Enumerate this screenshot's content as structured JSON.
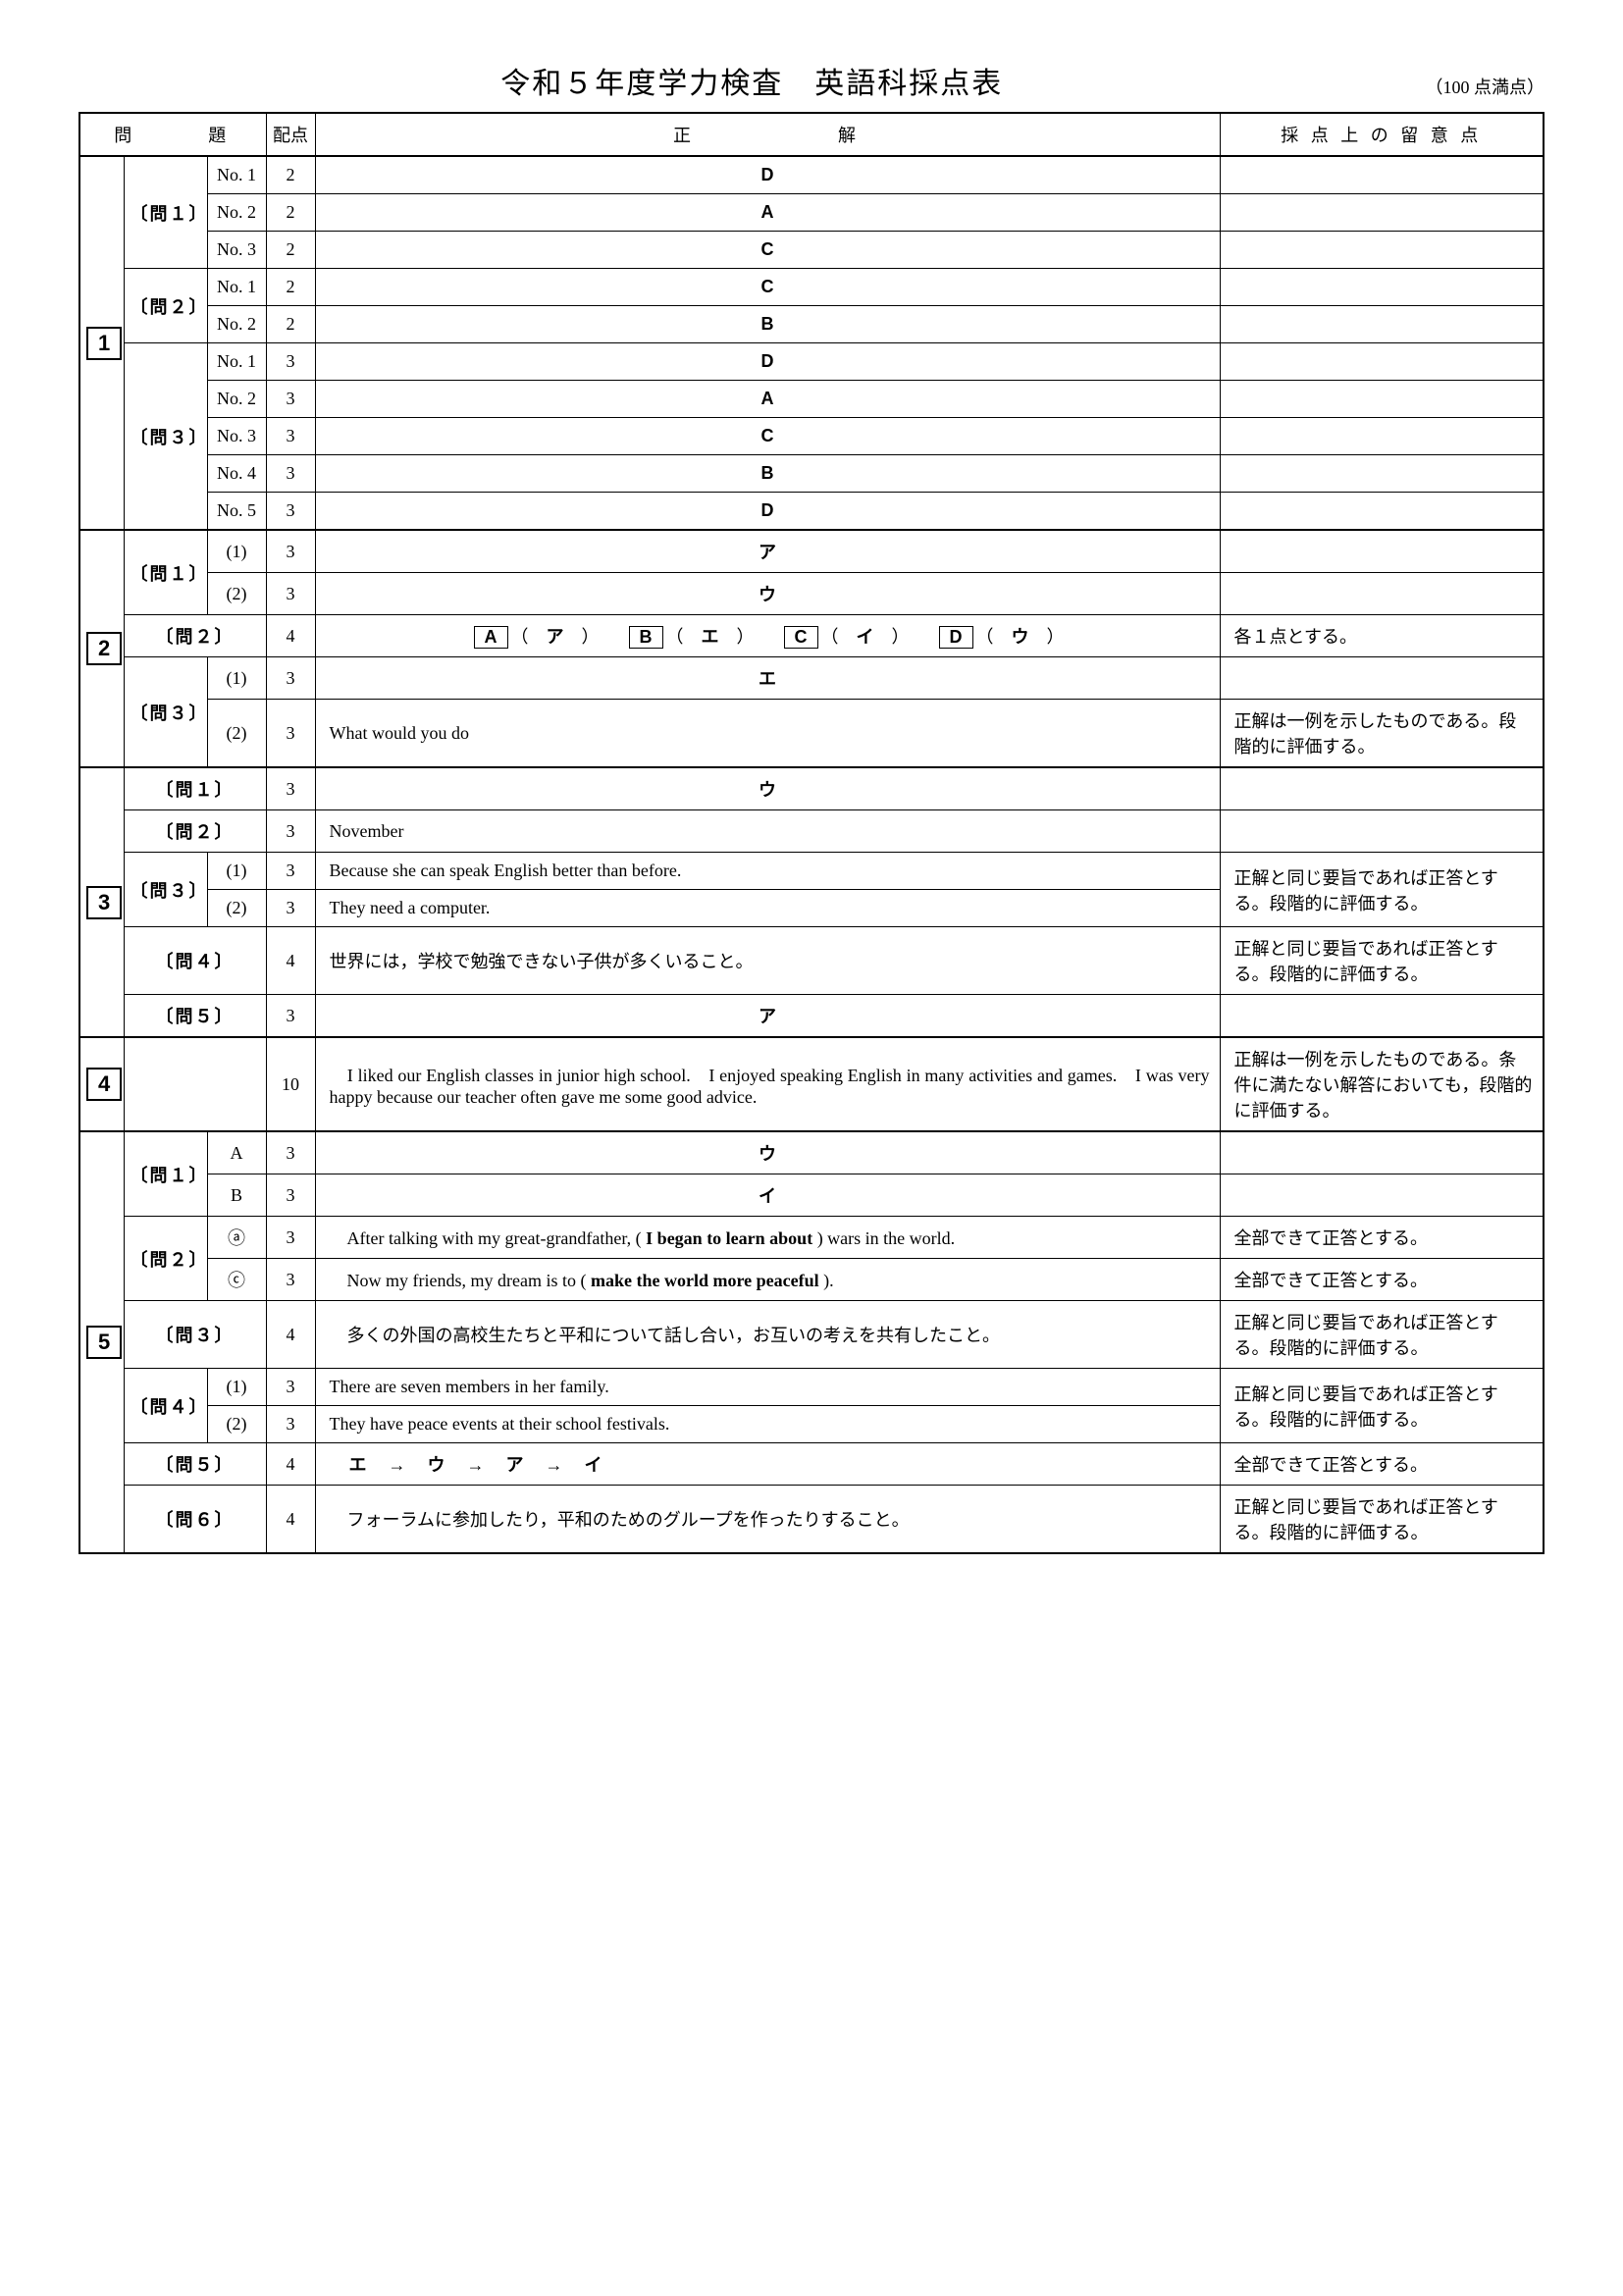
{
  "title": "令和５年度学力検査　英語科採点表",
  "full_marks": "（100 点満点）",
  "headers": {
    "question": "問　　　題",
    "points": "配点",
    "answer": "正　　　　　　解",
    "notes": "採 点 上 の 留 意 点"
  },
  "s1": {
    "t1": {
      "label": "〔問１〕",
      "rows": [
        {
          "sub": "No. 1",
          "pts": "2",
          "ans": "D"
        },
        {
          "sub": "No. 2",
          "pts": "2",
          "ans": "A"
        },
        {
          "sub": "No. 3",
          "pts": "2",
          "ans": "C"
        }
      ]
    },
    "t2": {
      "label": "〔問２〕",
      "rows": [
        {
          "sub": "No. 1",
          "pts": "2",
          "ans": "C"
        },
        {
          "sub": "No. 2",
          "pts": "2",
          "ans": "B"
        }
      ]
    },
    "t3": {
      "label": "〔問３〕",
      "rows": [
        {
          "sub": "No. 1",
          "pts": "3",
          "ans": "D"
        },
        {
          "sub": "No. 2",
          "pts": "3",
          "ans": "A"
        },
        {
          "sub": "No. 3",
          "pts": "3",
          "ans": "C"
        },
        {
          "sub": "No. 4",
          "pts": "3",
          "ans": "B"
        },
        {
          "sub": "No. 5",
          "pts": "3",
          "ans": "D"
        }
      ]
    }
  },
  "s2": {
    "t1": {
      "label": "〔問１〕",
      "rows": [
        {
          "sub": "(1)",
          "pts": "3",
          "ans": "ア"
        },
        {
          "sub": "(2)",
          "pts": "3",
          "ans": "ウ"
        }
      ]
    },
    "t2": {
      "label": "〔問２〕",
      "pts": "4",
      "pairs": [
        [
          "A",
          "ア"
        ],
        [
          "B",
          "エ"
        ],
        [
          "C",
          "イ"
        ],
        [
          "D",
          "ウ"
        ]
      ],
      "note": "各１点とする。"
    },
    "t3": {
      "label": "〔問３〕",
      "rows": [
        {
          "sub": "(1)",
          "pts": "3",
          "ans": "エ",
          "note": ""
        },
        {
          "sub": "(2)",
          "pts": "3",
          "ans": "What would you do",
          "left": true,
          "note": "正解は一例を示したものである。段階的に評価する。"
        }
      ]
    }
  },
  "s3": {
    "t1": {
      "label": "〔問１〕",
      "pts": "3",
      "ans": "ウ"
    },
    "t2": {
      "label": "〔問２〕",
      "pts": "3",
      "ans": "November",
      "left": true
    },
    "t3": {
      "label": "〔問３〕",
      "note": "正解と同じ要旨であれば正答とする。段階的に評価する。",
      "rows": [
        {
          "sub": "(1)",
          "pts": "3",
          "ans": "Because she can speak English better than before."
        },
        {
          "sub": "(2)",
          "pts": "3",
          "ans": "They need a computer."
        }
      ]
    },
    "t4": {
      "label": "〔問４〕",
      "pts": "4",
      "ans": "世界には，学校で勉強できない子供が多くいること。",
      "note": "正解と同じ要旨であれば正答とする。段階的に評価する。"
    },
    "t5": {
      "label": "〔問５〕",
      "pts": "3",
      "ans": "ア"
    }
  },
  "s4": {
    "pts": "10",
    "ans": "　I liked our English classes in junior high school.　I enjoyed speaking English in many activities and games.　I was very happy because our teacher often gave me some good advice.",
    "note": "正解は一例を示したものである。条件に満たない解答においても，段階的に評価する。"
  },
  "s5": {
    "t1": {
      "label": "〔問１〕",
      "rows": [
        {
          "sub": "A",
          "pts": "3",
          "ans": "ウ"
        },
        {
          "sub": "B",
          "pts": "3",
          "ans": "イ"
        }
      ]
    },
    "t2": {
      "label": "〔問２〕",
      "rows": [
        {
          "sub": "ⓐ",
          "pts": "3",
          "pre": "　After talking with my great-grandfather, ( ",
          "bold": "I began to learn about",
          "post": " ) wars in the world.",
          "note": "全部できて正答とする。"
        },
        {
          "sub": "ⓒ",
          "pts": "3",
          "pre": "　Now my friends, my dream is to ( ",
          "bold": "make the world more peaceful",
          "post": " ).",
          "note": "全部できて正答とする。"
        }
      ]
    },
    "t3": {
      "label": "〔問３〕",
      "pts": "4",
      "ans": "　多くの外国の高校生たちと平和について話し合い，お互いの考えを共有したこと。",
      "note": "正解と同じ要旨であれば正答とする。段階的に評価する。"
    },
    "t4": {
      "label": "〔問４〕",
      "note": "正解と同じ要旨であれば正答とする。段階的に評価する。",
      "rows": [
        {
          "sub": "(1)",
          "pts": "3",
          "ans": "There are seven members in her family."
        },
        {
          "sub": "(2)",
          "pts": "3",
          "ans": "They have peace events at their school festivals."
        }
      ]
    },
    "t5": {
      "label": "〔問５〕",
      "pts": "4",
      "seq": [
        "エ",
        "ウ",
        "ア",
        "イ"
      ],
      "note": "全部できて正答とする。"
    },
    "t6": {
      "label": "〔問６〕",
      "pts": "4",
      "ans": "　フォーラムに参加したり，平和のためのグループを作ったりすること。",
      "note": "正解と同じ要旨であれば正答とする。段階的に評価する。"
    }
  }
}
